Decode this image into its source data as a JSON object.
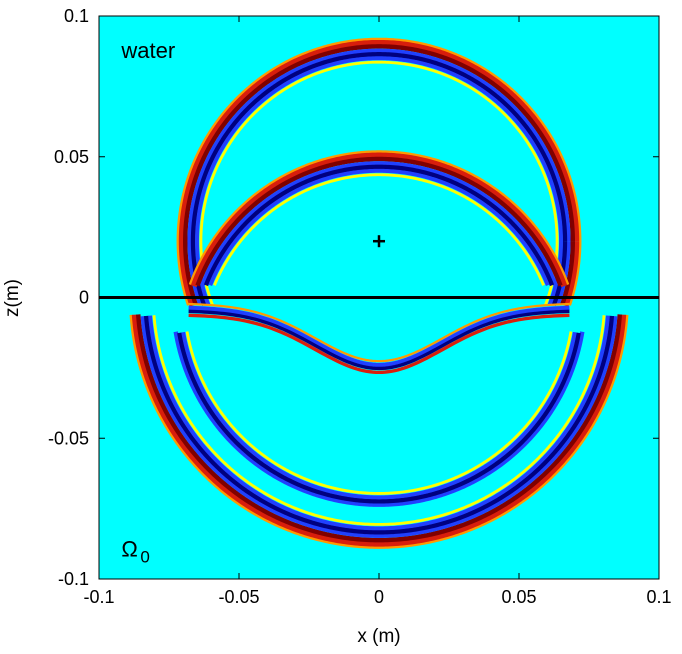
{
  "chart_data": {
    "type": "heatmap",
    "title": "",
    "xlabel": "x (m)",
    "ylabel": "z(m)",
    "xlim": [
      -0.1,
      0.1
    ],
    "ylim": [
      -0.1,
      0.1
    ],
    "x_ticks": [
      -0.1,
      -0.05,
      0,
      0.05,
      0.1
    ],
    "x_tick_labels": [
      "-0.1",
      "-0.05",
      "0",
      "0.05",
      "0.1"
    ],
    "y_ticks": [
      0.1,
      0.05,
      0,
      -0.05,
      -0.1
    ],
    "y_tick_labels": [
      "0.1",
      "0.05",
      "0",
      "-0.05",
      "-0.1"
    ],
    "background_color": "#00ffff",
    "colors": {
      "dark_red": "#800000",
      "red": "#d81e0c",
      "orange": "#ff9a00",
      "yellow": "#ffff00",
      "blue": "#2040ff",
      "navy": "#000080"
    },
    "annotations": [
      {
        "text": "water",
        "x": -0.092,
        "y": 0.085
      },
      {
        "text_main": "Ω",
        "text_sub": "0",
        "x": -0.092,
        "y": -0.092
      }
    ],
    "source": {
      "x": 0.0,
      "y": 0.02,
      "marker": "+"
    },
    "interface": {
      "z": 0.0,
      "x_range": [
        -0.1,
        0.1
      ]
    },
    "wavefronts": [
      {
        "name": "direct_upper",
        "center": [
          0.0,
          0.02
        ],
        "radius": 0.068,
        "from_z": -0.003
      },
      {
        "name": "reflected_upper",
        "center": [
          0.0,
          -0.02
        ],
        "radius": 0.068,
        "from_z": 0.004
      },
      {
        "name": "transmitted_lower",
        "center": [
          0.0,
          0.0
        ],
        "radius": 0.085,
        "from_z": -0.006
      },
      {
        "name": "refracted_inner",
        "center": [
          0.0,
          0.0
        ],
        "radius": 0.074,
        "from_z": -0.012,
        "max_z": -0.012
      }
    ]
  }
}
